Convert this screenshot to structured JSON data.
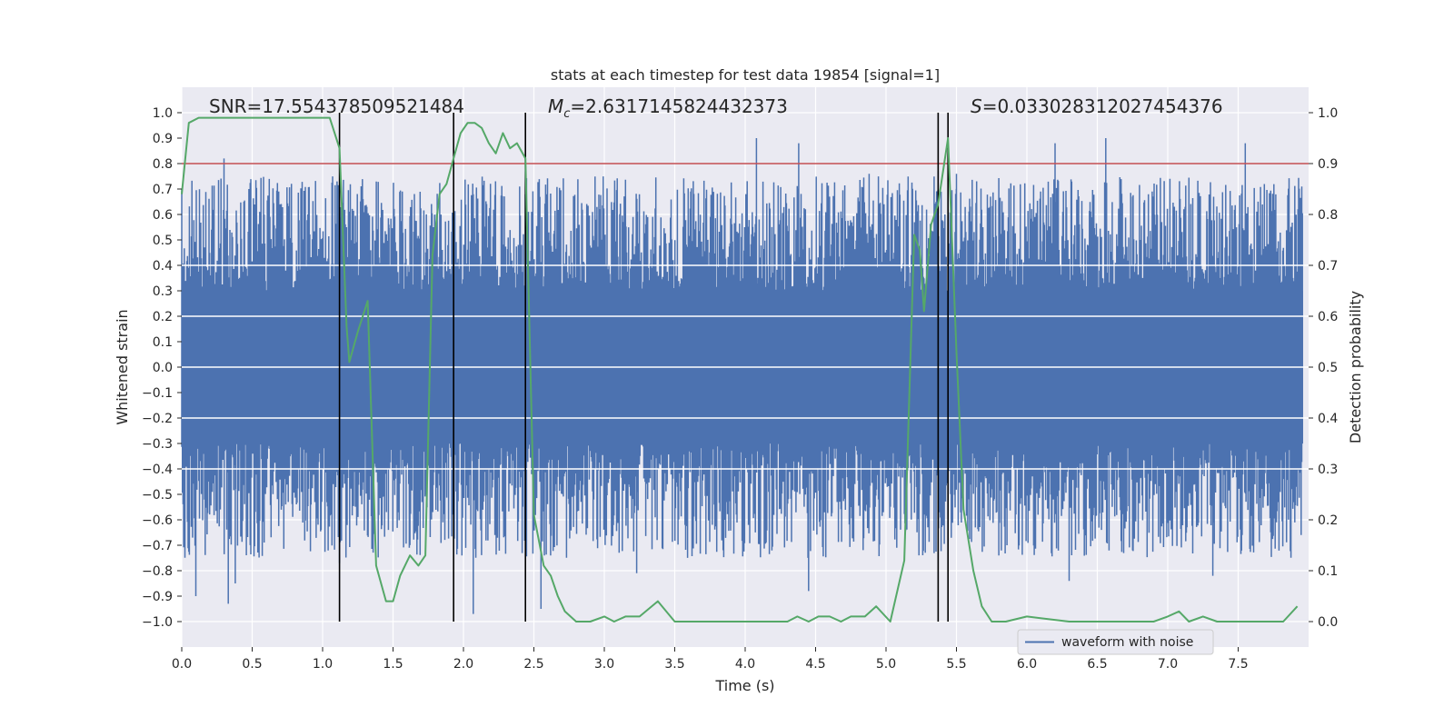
{
  "chart_data": {
    "type": "line",
    "title": "stats at each timestep for test data 19854 [signal=1]",
    "xlabel": "Time (s)",
    "ylabel": "Whitened strain",
    "ylabel_right": "Detection probability",
    "xlim": [
      0.0,
      8.0
    ],
    "ylim": [
      -1.1,
      1.1
    ],
    "ylim_right": [
      -0.05,
      1.05
    ],
    "xticks": [
      0.0,
      0.5,
      1.0,
      1.5,
      2.0,
      2.5,
      3.0,
      3.5,
      4.0,
      4.5,
      5.0,
      5.5,
      6.0,
      6.5,
      7.0,
      7.5
    ],
    "xtick_labels": [
      "0.0",
      "0.5",
      "1.0",
      "1.5",
      "2.0",
      "2.5",
      "3.0",
      "3.5",
      "4.0",
      "4.5",
      "5.0",
      "5.5",
      "6.0",
      "6.5",
      "7.0",
      "7.5"
    ],
    "yticks": [
      1.0,
      0.9,
      0.8,
      0.7,
      0.6,
      0.5,
      0.4,
      0.3,
      0.2,
      0.1,
      0.0,
      -0.1,
      -0.2,
      -0.3,
      -0.4,
      -0.5,
      -0.6,
      -0.7,
      -0.8,
      -0.9,
      -1.0
    ],
    "ytick_labels": [
      "1.0",
      "0.9",
      "0.8",
      "0.7",
      "0.6",
      "0.5",
      "0.4",
      "0.3",
      "0.2",
      "0.1",
      "0.0",
      "−0.1",
      "−0.2",
      "−0.3",
      "−0.4",
      "−0.5",
      "−0.6",
      "−0.7",
      "−0.8",
      "−0.9",
      "−1.0"
    ],
    "yticks_right": [
      1.0,
      0.9,
      0.8,
      0.7,
      0.6,
      0.5,
      0.4,
      0.3,
      0.2,
      0.1,
      0.0
    ],
    "ytick_labels_right": [
      "1.0",
      "0.9",
      "0.8",
      "0.7",
      "0.6",
      "0.5",
      "0.4",
      "0.3",
      "0.2",
      "0.1",
      "0.0"
    ],
    "annotations": {
      "snr": "SNR=17.554378509521484",
      "mc_symbol": "M",
      "mc_sub": "c",
      "mc_value": "=2.6317145824432373",
      "s_symbol": "S",
      "s_value": "=0.033028312027454376"
    },
    "legend": [
      {
        "label": "waveform with noise",
        "color": "#4c72b0"
      }
    ],
    "threshold": {
      "value": 0.9,
      "axis": "right",
      "color": "#c44e52"
    },
    "vlines": [
      1.12,
      1.93,
      2.44,
      5.37,
      5.44
    ],
    "series": [
      {
        "name": "waveform with noise",
        "axis": "left",
        "color": "#4c72b0",
        "style": "dense noise",
        "envelope": {
          "upper_range": [
            0.3,
            0.75
          ],
          "lower_range": [
            -0.75,
            -0.3
          ]
        },
        "peaks": [
          [
            0.3,
            0.82
          ],
          [
            0.33,
            -0.93
          ],
          [
            0.38,
            -0.85
          ],
          [
            0.1,
            -0.9
          ],
          [
            1.12,
            -0.77
          ],
          [
            1.36,
            -0.6
          ],
          [
            1.47,
            0.56
          ],
          [
            2.07,
            -0.97
          ],
          [
            2.44,
            0.82
          ],
          [
            2.55,
            -0.95
          ],
          [
            3.23,
            -0.81
          ],
          [
            4.08,
            0.9
          ],
          [
            4.38,
            0.88
          ],
          [
            4.45,
            -0.88
          ],
          [
            4.88,
            0.76
          ],
          [
            5.37,
            0.77
          ],
          [
            5.5,
            0.76
          ],
          [
            6.2,
            0.88
          ],
          [
            6.56,
            0.9
          ],
          [
            7.55,
            0.8
          ],
          [
            6.3,
            -0.84
          ],
          [
            7.32,
            -0.82
          ],
          [
            7.55,
            0.88
          ]
        ]
      },
      {
        "name": "detection probability",
        "axis": "right",
        "color": "#55a868",
        "x": [
          0.0,
          0.05,
          0.12,
          0.3,
          0.6,
          0.9,
          1.05,
          1.12,
          1.17,
          1.19,
          1.25,
          1.32,
          1.38,
          1.45,
          1.5,
          1.55,
          1.62,
          1.68,
          1.73,
          1.78,
          1.83,
          1.88,
          1.93,
          1.98,
          2.03,
          2.08,
          2.13,
          2.18,
          2.23,
          2.28,
          2.33,
          2.38,
          2.44,
          2.5,
          2.57,
          2.62,
          2.67,
          2.72,
          2.8,
          2.9,
          3.0,
          3.07,
          3.15,
          3.25,
          3.38,
          3.5,
          3.6,
          3.75,
          3.9,
          4.1,
          4.3,
          4.37,
          4.45,
          4.52,
          4.6,
          4.68,
          4.75,
          4.85,
          4.93,
          5.03,
          5.13,
          5.2,
          5.24,
          5.27,
          5.32,
          5.37,
          5.44,
          5.5,
          5.55,
          5.62,
          5.68,
          5.75,
          5.85,
          6.0,
          6.3,
          6.6,
          6.8,
          6.9,
          7.0,
          7.08,
          7.15,
          7.25,
          7.35,
          7.6,
          7.82,
          7.92
        ],
        "y": [
          0.84,
          0.98,
          0.99,
          0.99,
          0.99,
          0.99,
          0.99,
          0.93,
          0.58,
          0.51,
          0.57,
          0.63,
          0.11,
          0.04,
          0.04,
          0.09,
          0.13,
          0.11,
          0.13,
          0.72,
          0.84,
          0.86,
          0.91,
          0.96,
          0.98,
          0.98,
          0.97,
          0.94,
          0.92,
          0.96,
          0.93,
          0.94,
          0.91,
          0.21,
          0.11,
          0.09,
          0.05,
          0.02,
          0.0,
          0.0,
          0.01,
          0.0,
          0.01,
          0.01,
          0.04,
          0.0,
          0.0,
          0.0,
          0.0,
          0.0,
          0.0,
          0.01,
          0.0,
          0.01,
          0.01,
          0.0,
          0.01,
          0.01,
          0.03,
          0.0,
          0.12,
          0.76,
          0.73,
          0.61,
          0.78,
          0.82,
          0.95,
          0.53,
          0.22,
          0.1,
          0.03,
          0.0,
          0.0,
          0.01,
          0.0,
          0.0,
          0.0,
          0.0,
          0.01,
          0.02,
          0.0,
          0.01,
          0.0,
          0.0,
          0.0,
          0.03
        ]
      }
    ]
  }
}
